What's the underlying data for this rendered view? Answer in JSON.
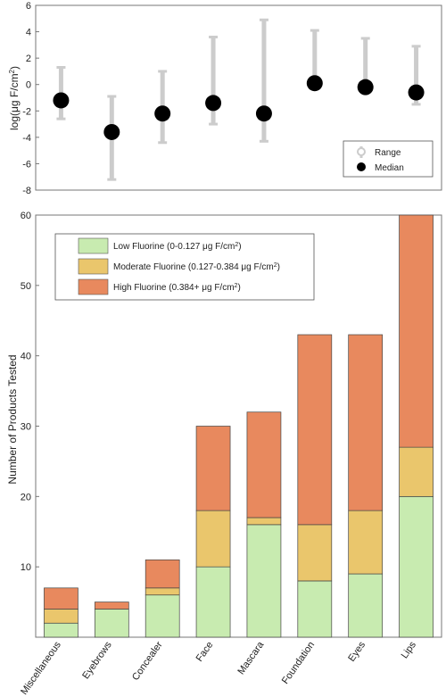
{
  "chart_data": [
    {
      "type": "scatter",
      "subtype": "median-with-range",
      "categories": [
        "Miscellaneous",
        "Eyebrows",
        "Concealer",
        "Face",
        "Mascara",
        "Foundation",
        "Eyes",
        "Lips"
      ],
      "ylabel_prefix": "log(μg F/cm",
      "ylabel_sup": "2",
      "ylabel_suffix": ")",
      "ylim": [
        -8,
        6
      ],
      "yticks": [
        -8,
        -6,
        -4,
        -2,
        0,
        2,
        4,
        6
      ],
      "grid": false,
      "legend_position": "bottom-right",
      "series": [
        {
          "name": "Range",
          "color": "#cccccc",
          "low": [
            -2.6,
            -7.2,
            -4.4,
            -3.0,
            -4.3,
            -0.2,
            -0.4,
            -1.5
          ],
          "high": [
            1.3,
            -0.9,
            1.0,
            3.6,
            4.9,
            4.1,
            3.5,
            2.9
          ]
        },
        {
          "name": "Median",
          "color": "#000000",
          "values": [
            -1.2,
            -3.6,
            -2.2,
            -1.4,
            -2.2,
            0.1,
            -0.2,
            -0.6
          ]
        }
      ]
    },
    {
      "type": "bar",
      "stacked": true,
      "categories": [
        "Miscellaneous",
        "Eyebrows",
        "Concealer",
        "Face",
        "Mascara",
        "Foundation",
        "Eyes",
        "Lips"
      ],
      "ylabel": "Number of Products Tested",
      "ylim": [
        0,
        60
      ],
      "yticks": [
        10,
        20,
        30,
        40,
        50,
        60
      ],
      "grid": false,
      "legend_position": "top-left",
      "series": [
        {
          "name": "Low Fluorine (0-0.127 μg F/cm",
          "name_sup": "2",
          "name_suffix": ")",
          "color": "#c8ebb0",
          "values": [
            2,
            4,
            6,
            10,
            16,
            8,
            9,
            20
          ]
        },
        {
          "name": "Moderate Fluorine (0.127-0.384 μg F/cm",
          "name_sup": "2",
          "name_suffix": ")",
          "color": "#eac66c",
          "values": [
            2,
            0,
            1,
            8,
            1,
            8,
            9,
            7
          ]
        },
        {
          "name": "High Fluorine (0.384+ μg F/cm",
          "name_sup": "2",
          "name_suffix": ")",
          "color": "#e8895e",
          "values": [
            3,
            1,
            4,
            12,
            15,
            27,
            25,
            33
          ]
        }
      ]
    }
  ]
}
